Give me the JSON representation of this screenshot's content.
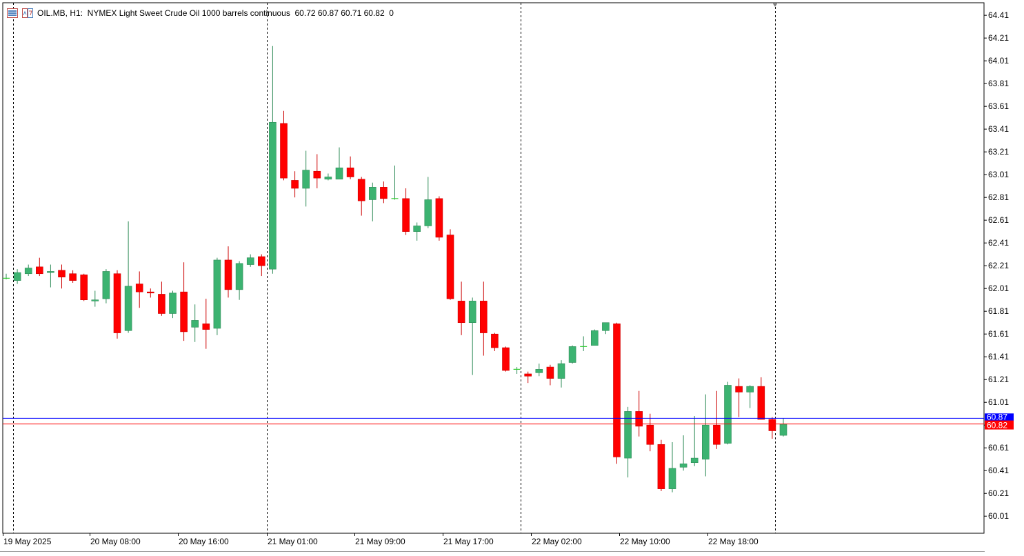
{
  "window": {
    "symbol": "OIL.MB",
    "timeframe": "H1",
    "description": "NYMEX Light Sweet Crude Oil 1000 barrels continuous",
    "ohlc": "60.72 60.87 60.71 60.82",
    "volume": "0",
    "header_text": "OIL.MB, H1:  NYMEX Light Sweet Crude Oil 1000 barrels continuous  60.72 60.87 60.71 60.82  0",
    "icons": [
      "chart-window-icon",
      "indicator-window-icon"
    ]
  },
  "colors": {
    "bull_body": "#3cb371",
    "bear_body": "#ff0000",
    "wick_bull": "#2e8b57",
    "wick_bear": "#cc0000",
    "ask_line": "#0000ff",
    "bid_line": "#ff0000",
    "period_sep": "#000000"
  },
  "chart_data": {
    "type": "candlestick",
    "y_range": [
      59.86,
      64.52
    ],
    "y_ticks": [
      "64.41",
      "64.21",
      "64.01",
      "63.81",
      "63.61",
      "63.41",
      "63.21",
      "63.01",
      "62.81",
      "62.61",
      "62.41",
      "62.21",
      "62.01",
      "61.81",
      "61.61",
      "61.41",
      "61.21",
      "61.01",
      "60.81",
      "60.61",
      "60.41",
      "60.21",
      "60.01"
    ],
    "x_labels": [
      "19 May 2025",
      "20 May 08:00",
      "20 May 16:00",
      "21 May 01:00",
      "21 May 09:00",
      "21 May 17:00",
      "22 May 02:00",
      "22 May 10:00",
      "22 May 18:00"
    ],
    "ask_price": "60.87",
    "bid_price": "60.82",
    "candles": [
      [
        62.1,
        62.14,
        62.09,
        62.1
      ],
      [
        62.08,
        62.18,
        62.05,
        62.15
      ],
      [
        62.14,
        62.22,
        62.12,
        62.19
      ],
      [
        62.2,
        62.28,
        62.12,
        62.14
      ],
      [
        62.15,
        62.22,
        62.02,
        62.16
      ],
      [
        62.17,
        62.22,
        62.01,
        62.11
      ],
      [
        62.14,
        62.17,
        62.06,
        62.08
      ],
      [
        62.13,
        62.14,
        61.9,
        61.91
      ],
      [
        61.9,
        61.99,
        61.85,
        61.91
      ],
      [
        61.92,
        62.18,
        61.88,
        62.16
      ],
      [
        62.14,
        62.17,
        61.57,
        61.62
      ],
      [
        61.64,
        62.6,
        61.62,
        62.03
      ],
      [
        62.05,
        62.16,
        61.84,
        61.98
      ],
      [
        61.98,
        62.01,
        61.93,
        61.97
      ],
      [
        61.96,
        62.07,
        61.77,
        61.79
      ],
      [
        61.79,
        61.99,
        61.75,
        61.97
      ],
      [
        61.98,
        62.24,
        61.55,
        61.63
      ],
      [
        61.67,
        61.87,
        61.54,
        61.73
      ],
      [
        61.7,
        61.92,
        61.48,
        61.65
      ],
      [
        61.66,
        62.28,
        61.6,
        62.26
      ],
      [
        62.26,
        62.38,
        61.93,
        62.0
      ],
      [
        62.0,
        62.25,
        61.91,
        62.23
      ],
      [
        62.22,
        62.31,
        62.2,
        62.28
      ],
      [
        62.29,
        62.31,
        62.12,
        62.21
      ],
      [
        62.18,
        64.14,
        62.14,
        63.47
      ],
      [
        63.46,
        63.57,
        62.96,
        62.98
      ],
      [
        62.96,
        63.04,
        62.81,
        62.89
      ],
      [
        62.89,
        63.22,
        62.73,
        63.05
      ],
      [
        63.04,
        63.19,
        62.89,
        62.98
      ],
      [
        62.97,
        63.02,
        62.96,
        62.99
      ],
      [
        62.97,
        63.25,
        62.97,
        63.07
      ],
      [
        63.07,
        63.17,
        62.97,
        62.99
      ],
      [
        62.97,
        62.99,
        62.65,
        62.78
      ],
      [
        62.79,
        62.94,
        62.6,
        62.9
      ],
      [
        62.9,
        62.95,
        62.76,
        62.8
      ],
      [
        62.8,
        63.09,
        62.79,
        62.8
      ],
      [
        62.8,
        62.89,
        62.48,
        62.51
      ],
      [
        62.51,
        62.59,
        62.43,
        62.56
      ],
      [
        62.56,
        62.99,
        62.54,
        62.79
      ],
      [
        62.8,
        62.82,
        62.43,
        62.46
      ],
      [
        62.48,
        62.53,
        61.91,
        61.92
      ],
      [
        61.9,
        62.07,
        61.6,
        61.71
      ],
      [
        61.71,
        61.93,
        61.25,
        61.9
      ],
      [
        61.9,
        62.07,
        61.42,
        61.62
      ],
      [
        61.61,
        61.62,
        61.46,
        61.49
      ],
      [
        61.49,
        61.5,
        61.28,
        61.29
      ],
      [
        61.3,
        61.32,
        61.26,
        61.3
      ],
      [
        61.26,
        61.28,
        61.18,
        61.24
      ],
      [
        61.27,
        61.35,
        61.24,
        61.3
      ],
      [
        61.32,
        61.34,
        61.16,
        61.22
      ],
      [
        61.22,
        61.38,
        61.14,
        61.35
      ],
      [
        61.36,
        61.51,
        61.35,
        61.5
      ],
      [
        61.5,
        61.59,
        61.46,
        61.5
      ],
      [
        61.51,
        61.65,
        61.51,
        61.64
      ],
      [
        61.64,
        61.71,
        61.61,
        61.71
      ],
      [
        61.7,
        61.71,
        60.47,
        60.53
      ],
      [
        60.52,
        60.97,
        60.35,
        60.93
      ],
      [
        60.93,
        61.11,
        60.71,
        60.8
      ],
      [
        60.81,
        60.91,
        60.58,
        60.64
      ],
      [
        60.64,
        60.68,
        60.23,
        60.25
      ],
      [
        60.25,
        60.66,
        60.22,
        60.43
      ],
      [
        60.44,
        60.72,
        60.41,
        60.47
      ],
      [
        60.48,
        60.89,
        60.45,
        60.52
      ],
      [
        60.51,
        61.08,
        60.36,
        60.81
      ],
      [
        60.81,
        61.11,
        60.6,
        60.64
      ],
      [
        60.65,
        61.19,
        60.64,
        61.16
      ],
      [
        61.15,
        61.22,
        60.88,
        61.1
      ],
      [
        61.1,
        61.16,
        60.96,
        61.15
      ],
      [
        61.15,
        61.23,
        60.86,
        60.86
      ],
      [
        60.86,
        60.88,
        60.69,
        60.76
      ],
      [
        60.72,
        60.87,
        60.71,
        60.82
      ]
    ]
  }
}
